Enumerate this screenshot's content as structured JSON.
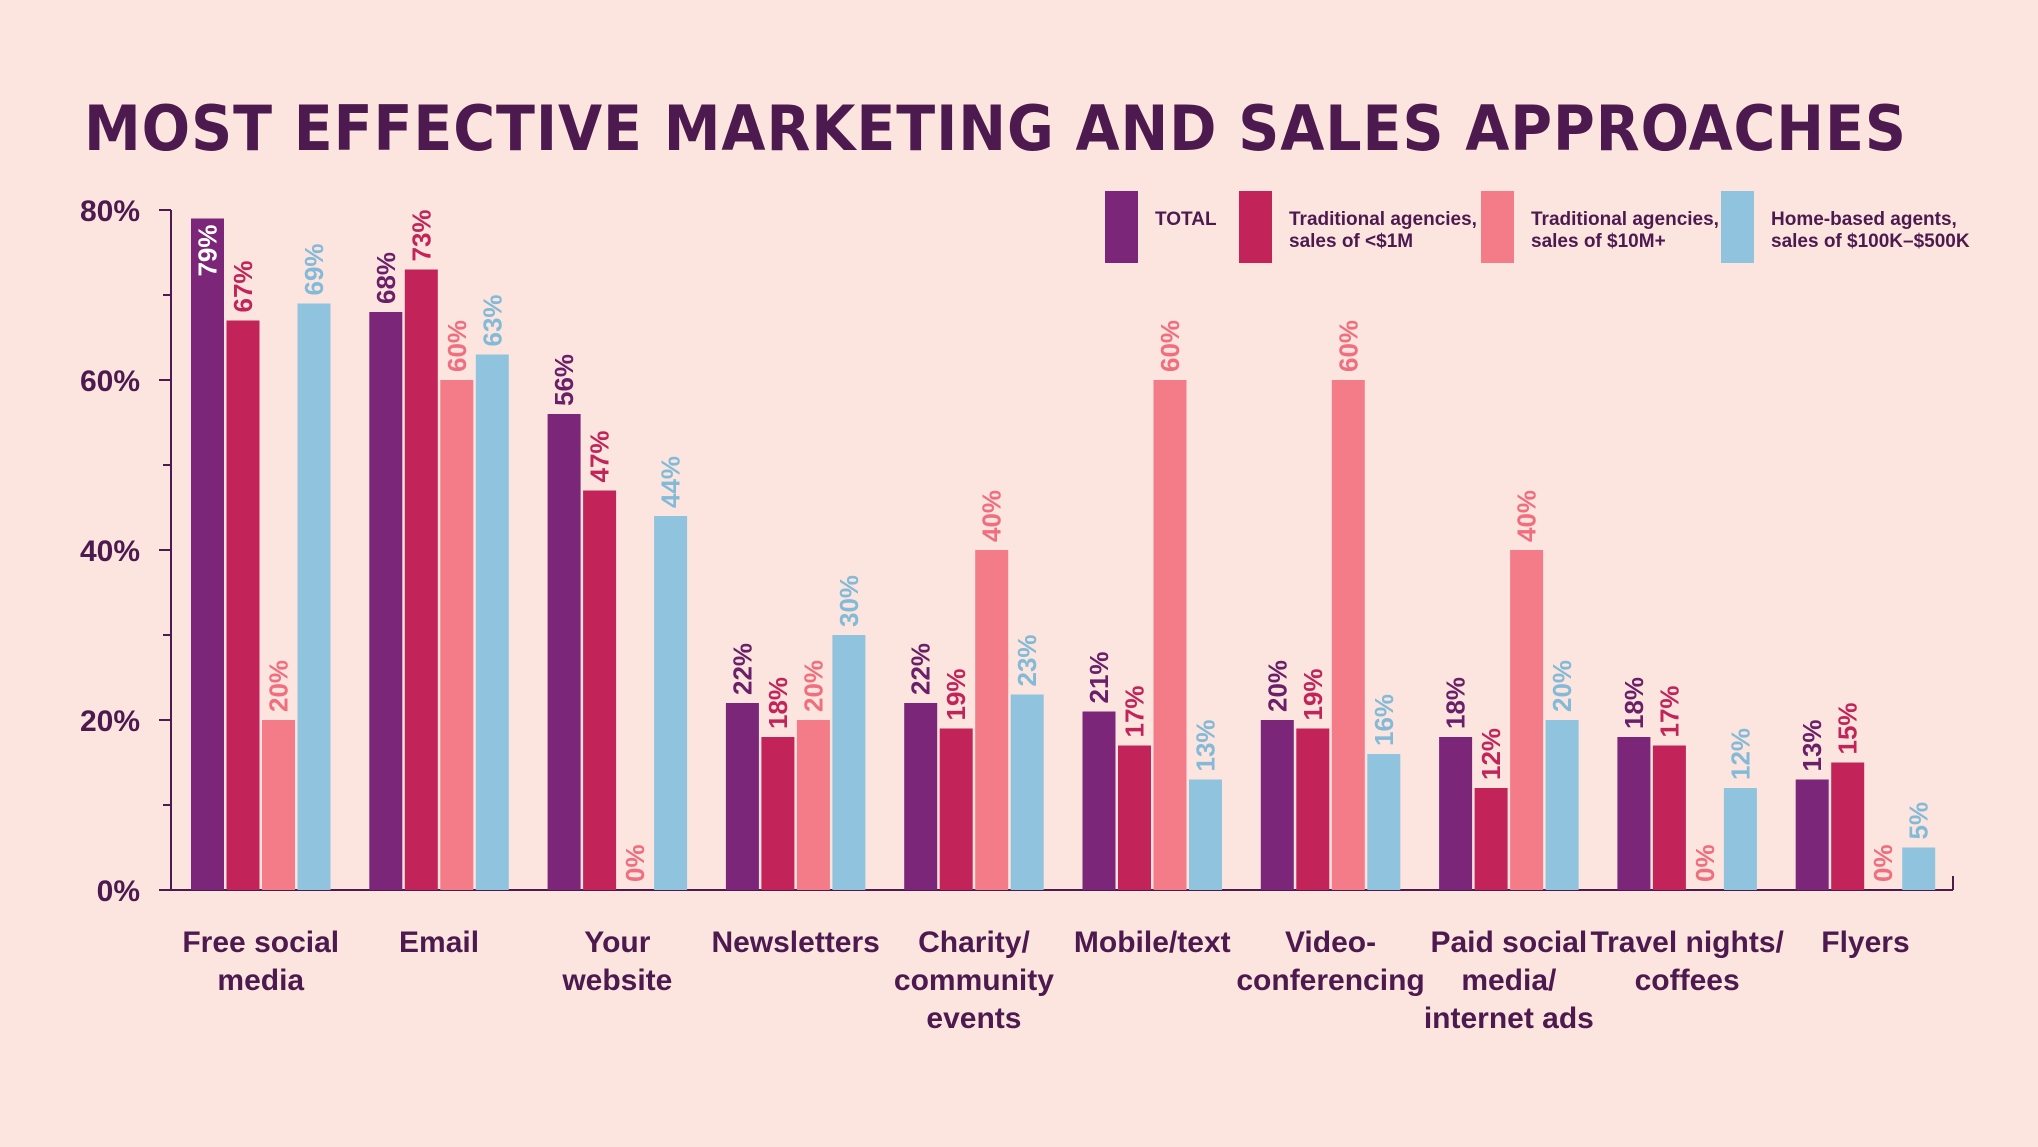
{
  "chart_data": {
    "type": "bar",
    "title": "MOST EFFECTIVE MARKETING AND SALES APPROACHES",
    "xlabel": "",
    "ylabel": "",
    "ylim": [
      0,
      80
    ],
    "yticks": [
      0,
      20,
      40,
      60,
      80
    ],
    "ytick_labels": [
      "0%",
      "20%",
      "40%",
      "60%",
      "80%"
    ],
    "value_suffix": "%",
    "legend_position": "top-right",
    "categories": [
      [
        "Free social",
        "media"
      ],
      [
        "Email"
      ],
      [
        "Your",
        "website"
      ],
      [
        "Newsletters"
      ],
      [
        "Charity/",
        "community",
        "events"
      ],
      [
        "Mobile/text"
      ],
      [
        "Video-",
        "conferencing"
      ],
      [
        "Paid social",
        "media/",
        "internet ads"
      ],
      [
        "Travel nights/",
        "coffees"
      ],
      [
        "Flyers"
      ]
    ],
    "series": [
      {
        "name": [
          "TOTAL"
        ],
        "color": "#7b2678",
        "label_color": "#6a1f68",
        "values": [
          79,
          68,
          56,
          22,
          22,
          21,
          20,
          18,
          18,
          13
        ]
      },
      {
        "name": [
          "Traditional agencies,",
          "sales of <$1M"
        ],
        "color": "#c2245a",
        "label_color": "#c2245a",
        "values": [
          67,
          73,
          47,
          18,
          19,
          17,
          19,
          12,
          17,
          15
        ]
      },
      {
        "name": [
          "Traditional agencies,",
          "sales of $10M+"
        ],
        "color": "#f47b88",
        "label_color": "#f06e7d",
        "values": [
          20,
          60,
          0,
          20,
          40,
          60,
          60,
          40,
          0,
          0
        ]
      },
      {
        "name": [
          "Home-based agents,",
          "sales of $100K–$500K"
        ],
        "color": "#90c4de",
        "label_color": "#82bad7",
        "values": [
          69,
          63,
          44,
          30,
          23,
          13,
          16,
          20,
          12,
          5
        ]
      }
    ]
  }
}
